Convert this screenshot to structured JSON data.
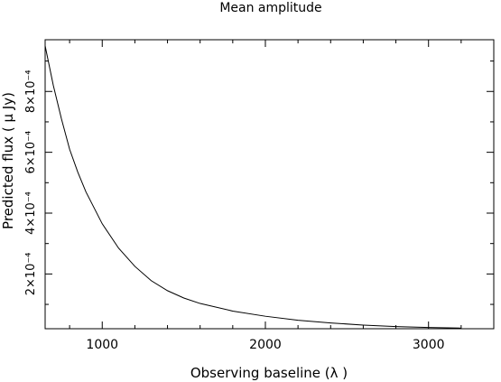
{
  "chart_data": {
    "type": "line",
    "title": "Mean amplitude",
    "xlabel": "Observing baseline (λ )",
    "ylabel": "Predicted flux ( μ Jy)",
    "xlim": [
      650,
      3400
    ],
    "ylim": [
      2e-05,
      0.00097
    ],
    "grid": false,
    "legend": "none",
    "x_ticks": [
      {
        "value": 1000,
        "label": "1000"
      },
      {
        "value": 2000,
        "label": "2000"
      },
      {
        "value": 3000,
        "label": "3000"
      }
    ],
    "x_minor_step": 200,
    "y_ticks": [
      {
        "value": 0.0002,
        "label": "2×10⁻⁴"
      },
      {
        "value": 0.0004,
        "label": "4×10⁻⁴"
      },
      {
        "value": 0.0006,
        "label": "6×10⁻⁴"
      },
      {
        "value": 0.0008,
        "label": "8×10⁻⁴"
      }
    ],
    "y_minor_step": 0.0001,
    "series": [
      {
        "values_x": [
          650,
          700,
          750,
          800,
          850,
          900,
          1000,
          1100,
          1200,
          1300,
          1400,
          1500,
          1600,
          1800,
          2000,
          2200,
          2400,
          2600,
          2800,
          3000,
          3200
        ],
        "values_y": [
          0.00095,
          0.00082,
          0.00071,
          0.00061,
          0.000535,
          0.00047,
          0.000365,
          0.000285,
          0.000225,
          0.000178,
          0.000145,
          0.000121,
          0.000103,
          7.8e-05,
          6.1e-05,
          4.8e-05,
          3.9e-05,
          3.2e-05,
          2.7e-05,
          2.4e-05,
          2.2e-05
        ]
      }
    ]
  }
}
